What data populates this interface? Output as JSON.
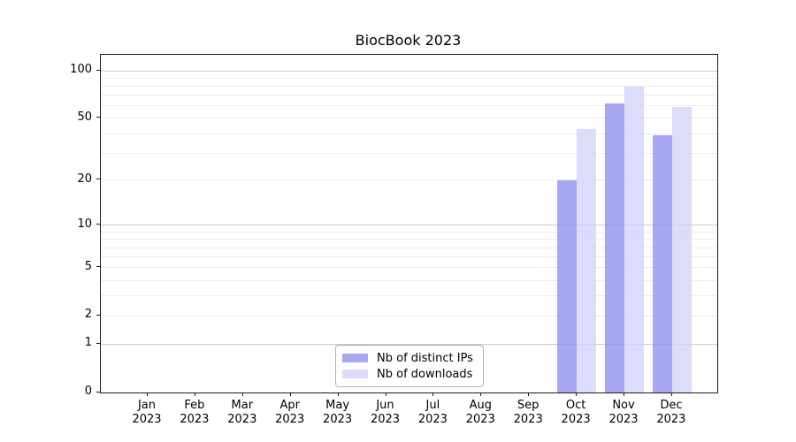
{
  "chart_data": {
    "type": "bar",
    "title": "BiocBook 2023",
    "categories": [
      {
        "month": "Jan",
        "year": "2023"
      },
      {
        "month": "Feb",
        "year": "2023"
      },
      {
        "month": "Mar",
        "year": "2023"
      },
      {
        "month": "Apr",
        "year": "2023"
      },
      {
        "month": "May",
        "year": "2023"
      },
      {
        "month": "Jun",
        "year": "2023"
      },
      {
        "month": "Jul",
        "year": "2023"
      },
      {
        "month": "Aug",
        "year": "2023"
      },
      {
        "month": "Sep",
        "year": "2023"
      },
      {
        "month": "Oct",
        "year": "2023"
      },
      {
        "month": "Nov",
        "year": "2023"
      },
      {
        "month": "Dec",
        "year": "2023"
      }
    ],
    "series": [
      {
        "name": "Nb of distinct IPs",
        "color": "rgba(145,145,239,0.8)",
        "legend_color": "#a7a7f2",
        "values": [
          0,
          0,
          0,
          0,
          0,
          0,
          0,
          0,
          0,
          20,
          62,
          39
        ]
      },
      {
        "name": "Nb of downloads",
        "color": "rgba(211,211,250,0.8)",
        "legend_color": "#dcdcfa",
        "values": [
          0,
          0,
          0,
          0,
          0,
          0,
          0,
          0,
          0,
          43,
          79,
          59
        ]
      }
    ],
    "xlabel": "",
    "ylabel": "",
    "yscale": "log1p",
    "ylim": [
      0,
      126
    ],
    "yticks": [
      {
        "value": 100,
        "label": "100"
      },
      {
        "value": 50,
        "label": "50"
      },
      {
        "value": 20,
        "label": "20"
      },
      {
        "value": 10,
        "label": "10"
      },
      {
        "value": 5,
        "label": "5"
      },
      {
        "value": 2,
        "label": "2"
      },
      {
        "value": 1,
        "label": "1"
      },
      {
        "value": 0,
        "label": "0"
      }
    ],
    "grid": {
      "major_values": [
        1,
        10,
        100
      ],
      "minor_values": [
        2,
        3,
        4,
        5,
        6,
        7,
        8,
        9,
        20,
        30,
        40,
        50,
        60,
        70,
        80,
        90
      ],
      "major_color": "#c9c9c9",
      "minor_color": "#ececec"
    },
    "legend": {
      "position": "lower center",
      "entries": [
        "Nb of distinct IPs",
        "Nb of downloads"
      ]
    },
    "spine_color": "#1a1a1a"
  }
}
